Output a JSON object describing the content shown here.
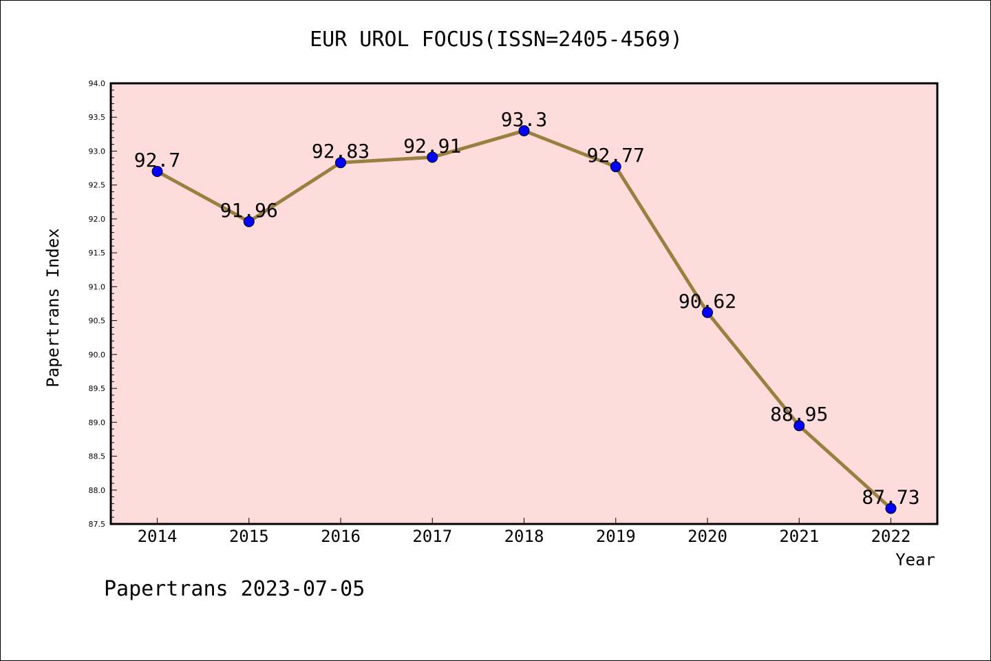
{
  "chart_data": {
    "type": "line",
    "title": "EUR UROL FOCUS(ISSN=2405-4569)",
    "xlabel": "Year",
    "ylabel": "Papertrans Index",
    "footer": "Papertrans 2023-07-05",
    "categories": [
      "2014",
      "2015",
      "2016",
      "2017",
      "2018",
      "2019",
      "2020",
      "2021",
      "2022"
    ],
    "series": [
      {
        "values": [
          92.7,
          91.96,
          92.83,
          92.91,
          93.3,
          92.77,
          90.62,
          88.95,
          87.73
        ],
        "labels": [
          "92.7",
          "91.96",
          "92.83",
          "92.91",
          "93.3",
          "92.77",
          "90.62",
          "88.95",
          "87.73"
        ]
      }
    ],
    "ylim": [
      87.5,
      94.0
    ],
    "yticks": [
      "87.5",
      "88.0",
      "88.5",
      "89.0",
      "89.5",
      "90.0",
      "90.5",
      "91.0",
      "91.5",
      "92.0",
      "92.5",
      "93.0",
      "93.5",
      "94.0"
    ],
    "grid": false,
    "colors": {
      "plot_background": "#ffdcdc",
      "line": "#9a8040",
      "marker": "#0000ff"
    }
  }
}
